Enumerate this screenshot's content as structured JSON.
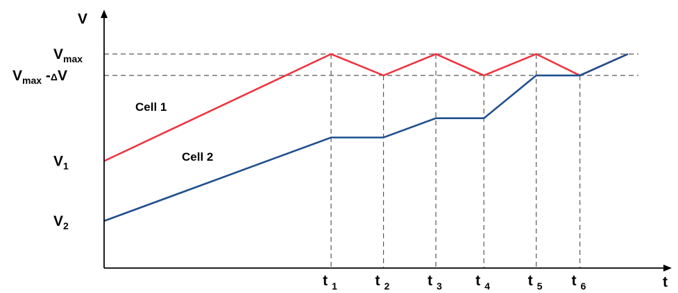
{
  "chart_data": {
    "type": "line",
    "axes": {
      "y_label": "V",
      "x_label": "t",
      "y_ticks": [
        {
          "main": "V",
          "sub": "max",
          "suffix": "",
          "value": 10
        },
        {
          "main": "V",
          "sub": "max",
          "suffix": " -ΔV",
          "value": 9
        },
        {
          "main": "V",
          "sub": "1",
          "suffix": "",
          "value": 5
        },
        {
          "main": "V",
          "sub": "2",
          "suffix": "",
          "value": 2.2
        }
      ],
      "x_ticks": [
        {
          "main": "t",
          "sub": "1",
          "value": 5.2
        },
        {
          "main": "t",
          "sub": "2",
          "value": 6.4
        },
        {
          "main": "t",
          "sub": "3",
          "value": 7.6
        },
        {
          "main": "t",
          "sub": "4",
          "value": 8.7
        },
        {
          "main": "t",
          "sub": "5",
          "value": 9.9
        },
        {
          "main": "t",
          "sub": "6",
          "value": 10.9
        }
      ],
      "xlim": [
        0,
        12.4
      ],
      "ylim": [
        0,
        12
      ]
    },
    "series": [
      {
        "name": "Cell 1",
        "color": "#ef3340",
        "points": [
          [
            0,
            5
          ],
          [
            5.2,
            10
          ],
          [
            6.4,
            9
          ],
          [
            7.6,
            10
          ],
          [
            8.7,
            9
          ],
          [
            9.9,
            10
          ],
          [
            10.9,
            9
          ],
          [
            12.0,
            10
          ]
        ]
      },
      {
        "name": "Cell 2",
        "color": "#1f4f8f",
        "points": [
          [
            0,
            2.2
          ],
          [
            5.2,
            6.1
          ],
          [
            6.4,
            6.1
          ],
          [
            7.6,
            7
          ],
          [
            8.7,
            7
          ],
          [
            9.9,
            9
          ],
          [
            10.9,
            9
          ],
          [
            12.0,
            10
          ]
        ]
      }
    ],
    "guides": {
      "horizontal": [
        "V max",
        "V max -ΔV"
      ],
      "vertical": [
        "t1",
        "t2",
        "t3",
        "t4",
        "t5",
        "t6"
      ]
    },
    "grid": false,
    "legend": "none (series labeled directly)"
  }
}
